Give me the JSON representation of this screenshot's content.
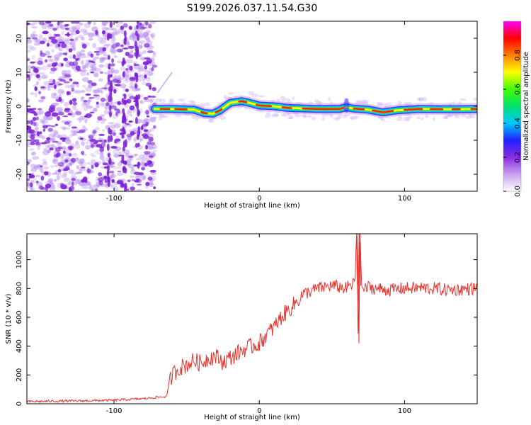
{
  "title": "S199.2026.037.11.54.G30",
  "colors": {
    "background": "#ffffff",
    "axis": "#000000",
    "snr_line": "#e8302a",
    "noise": "#7a1fd6"
  },
  "chart_data": [
    {
      "id": "spectrogram",
      "type": "heatmap",
      "xlabel": "Height of straight line (km)",
      "ylabel": "Frequency (Hz)",
      "xlim": [
        -160,
        150
      ],
      "ylim": [
        -25,
        25
      ],
      "xticks": [
        {
          "v": -100,
          "label": "-100"
        },
        {
          "v": 0,
          "label": "0"
        },
        {
          "v": 100,
          "label": "100"
        }
      ],
      "yticks": [
        {
          "v": -20,
          "label": "-20"
        },
        {
          "v": -10,
          "label": "-10"
        },
        {
          "v": 0,
          "label": "0"
        },
        {
          "v": 10,
          "label": "10"
        },
        {
          "v": 20,
          "label": "20"
        }
      ],
      "noise_region_x": [
        -160,
        -72
      ],
      "signal_start_x": -72,
      "ridge": [
        [
          -72,
          -0.8
        ],
        [
          -60,
          -0.8
        ],
        [
          -45,
          -1.0
        ],
        [
          -38,
          -2.0
        ],
        [
          -32,
          -2.2
        ],
        [
          -27,
          -1.2
        ],
        [
          -20,
          1.0
        ],
        [
          -12,
          1.5
        ],
        [
          -5,
          0.8
        ],
        [
          0,
          0.2
        ],
        [
          10,
          0.0
        ],
        [
          20,
          -0.5
        ],
        [
          40,
          -0.8
        ],
        [
          55,
          -0.8
        ],
        [
          60,
          -0.3
        ],
        [
          65,
          -0.7
        ],
        [
          75,
          -1.0
        ],
        [
          85,
          -1.8
        ],
        [
          95,
          -1.2
        ],
        [
          110,
          -0.8
        ],
        [
          130,
          -0.9
        ],
        [
          150,
          -0.8
        ]
      ],
      "colorbar": {
        "label": "Normalized spectral amplitude",
        "range": [
          0,
          1
        ],
        "ticks": [
          {
            "v": 0.0,
            "label": "0.0"
          },
          {
            "v": 0.2,
            "label": "0.2"
          },
          {
            "v": 0.4,
            "label": "0.4"
          },
          {
            "v": 0.6,
            "label": "0.6"
          },
          {
            "v": 0.8,
            "label": "0.8"
          }
        ],
        "colormap": [
          "#ffffff",
          "#c8a0f0",
          "#8a2be2",
          "#2020ff",
          "#00c8ff",
          "#00e070",
          "#40ff00",
          "#ffff00",
          "#ff8000",
          "#ff0000",
          "#ff00ff"
        ]
      }
    },
    {
      "id": "snr",
      "type": "line",
      "xlabel": "Height of straight line (km)",
      "ylabel": "SNR (10 * v/v)",
      "xlim": [
        -160,
        150
      ],
      "ylim": [
        0,
        1180
      ],
      "xticks": [
        {
          "v": -100,
          "label": "-100"
        },
        {
          "v": 0,
          "label": "0"
        },
        {
          "v": 100,
          "label": "100"
        }
      ],
      "yticks": [
        {
          "v": 0,
          "label": "0"
        },
        {
          "v": 200,
          "label": "200"
        },
        {
          "v": 400,
          "label": "400"
        },
        {
          "v": 600,
          "label": "600"
        },
        {
          "v": 800,
          "label": "800"
        },
        {
          "v": 1000,
          "label": "1000"
        }
      ],
      "series": [
        {
          "name": "SNR",
          "x": [
            -160,
            -140,
            -120,
            -100,
            -80,
            -70,
            -64,
            -62,
            -60,
            -55,
            -50,
            -45,
            -40,
            -35,
            -30,
            -25,
            -20,
            -15,
            -10,
            -5,
            0,
            5,
            10,
            15,
            20,
            25,
            30,
            35,
            40,
            45,
            50,
            55,
            60,
            62,
            65,
            67,
            68,
            69,
            70,
            72,
            75,
            80,
            90,
            100,
            110,
            120,
            130,
            140,
            150
          ],
          "y": [
            15,
            18,
            20,
            25,
            35,
            45,
            50,
            140,
            200,
            250,
            270,
            300,
            280,
            320,
            330,
            290,
            320,
            350,
            380,
            400,
            420,
            480,
            530,
            600,
            650,
            700,
            760,
            780,
            800,
            810,
            820,
            810,
            800,
            820,
            830,
            960,
            550,
            1050,
            830,
            790,
            810,
            800,
            790,
            800,
            805,
            800,
            790,
            795,
            800
          ]
        }
      ]
    }
  ]
}
